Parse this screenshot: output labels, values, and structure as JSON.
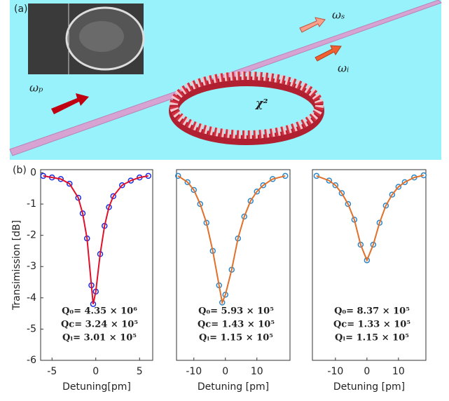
{
  "panel_a": {
    "label": "(a)",
    "omega_s": "ωₛ",
    "omega_i": "ωᵢ",
    "omega_p": "ωₚ",
    "chi": "χ²"
  },
  "panel_b": {
    "label": "(b)"
  },
  "chart_data": [
    {
      "type": "line",
      "ylabel": "Transimission [dB]",
      "xlabel": "Detuning[pm]",
      "xlim": [
        -6.3,
        6.5
      ],
      "ylim": [
        -6,
        0.1
      ],
      "xticks": [
        -5,
        0,
        5
      ],
      "yticks": [
        0,
        -1,
        -2,
        -3,
        -4,
        -5,
        -6
      ],
      "x": [
        -6,
        -5,
        -4,
        -3,
        -2,
        -1.5,
        -1,
        -0.5,
        -0.3,
        0,
        0.5,
        1,
        1.5,
        2,
        3,
        4,
        5,
        6
      ],
      "values": [
        -0.1,
        -0.15,
        -0.2,
        -0.35,
        -0.8,
        -1.3,
        -2.1,
        -3.6,
        -4.2,
        -3.8,
        -2.6,
        -1.7,
        -1.1,
        -0.75,
        -0.4,
        -0.25,
        -0.15,
        -0.1
      ],
      "color": "#e0102a",
      "marker_color": "#1a2ee0",
      "annotations": [
        "Q₀= 4.35 × 10⁶",
        "Qc= 3.24 × 10⁵",
        "Qₗ= 3.01 × 10⁵"
      ]
    },
    {
      "type": "line",
      "xlabel": "Detuning [pm]",
      "xlim": [
        -15.5,
        20.5
      ],
      "ylim": [
        -6,
        0.1
      ],
      "xticks": [
        -10,
        0,
        10
      ],
      "x": [
        -15,
        -12,
        -10,
        -8,
        -6,
        -4,
        -2,
        -1,
        0,
        2,
        4,
        6,
        8,
        10,
        12,
        15,
        19
      ],
      "values": [
        -0.1,
        -0.3,
        -0.55,
        -1.0,
        -1.6,
        -2.5,
        -3.6,
        -4.15,
        -3.9,
        -3.1,
        -2.1,
        -1.4,
        -0.9,
        -0.6,
        -0.4,
        -0.2,
        -0.1
      ],
      "color": "#e0702a",
      "marker_color": "#2a86c8",
      "annotations": [
        "Q₀= 5.93 × 10⁵",
        "Qc= 1.43 × 10⁵",
        "Qₗ= 1.15 × 10⁵"
      ]
    },
    {
      "type": "line",
      "xlabel": "Detuning [pm]",
      "xlim": [
        -17.3,
        18.7
      ],
      "ylim": [
        -6,
        0.1
      ],
      "xticks": [
        -10,
        0,
        10
      ],
      "x": [
        -16,
        -12,
        -10,
        -8,
        -6,
        -4,
        -2,
        0,
        2,
        4,
        6,
        8,
        10,
        12,
        15,
        18
      ],
      "values": [
        -0.1,
        -0.25,
        -0.4,
        -0.65,
        -1.0,
        -1.5,
        -2.3,
        -2.8,
        -2.3,
        -1.6,
        -1.05,
        -0.7,
        -0.45,
        -0.3,
        -0.15,
        -0.08
      ],
      "color": "#e0702a",
      "marker_color": "#2a86c8",
      "annotations": [
        "Q₀= 8.37 × 10⁵",
        "Qc= 1.33 × 10⁵",
        "Qₗ= 1.15 × 10⁵"
      ]
    }
  ]
}
